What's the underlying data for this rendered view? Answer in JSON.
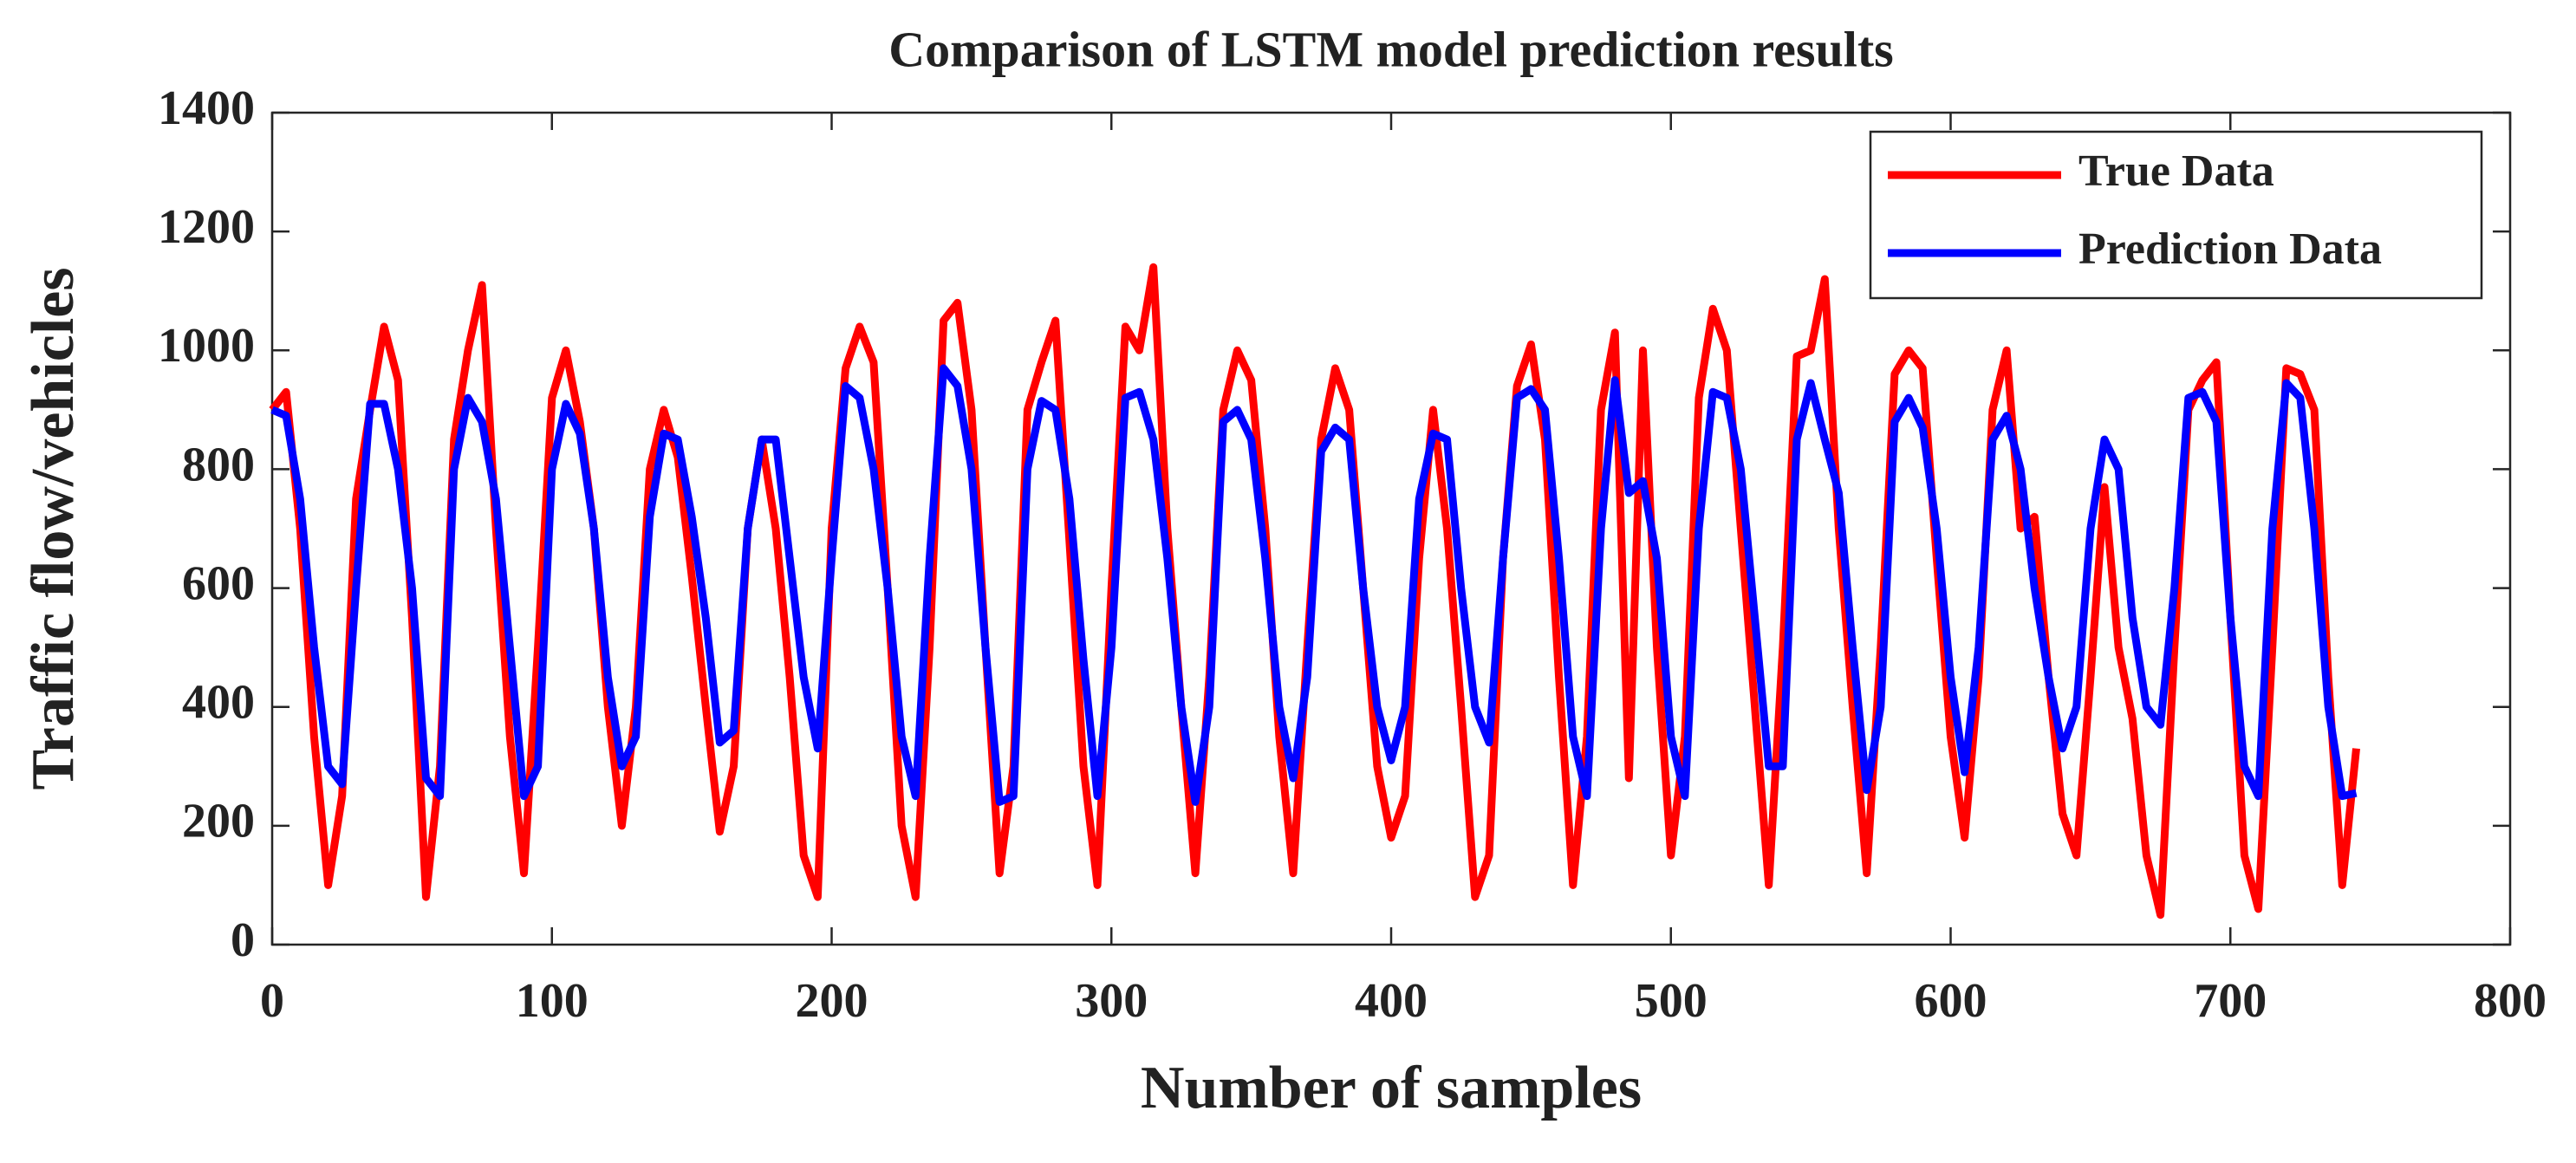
{
  "chart_data": {
    "type": "line",
    "title": "Comparison of LSTM model prediction results",
    "x_label": "Number of samples",
    "y_label": "Traffic flow/vehicles",
    "x": [
      0,
      5,
      10,
      15,
      20,
      25,
      30,
      35,
      40,
      45,
      50,
      55,
      60,
      65,
      70,
      75,
      80,
      85,
      90,
      95,
      100,
      105,
      110,
      115,
      120,
      125,
      130,
      135,
      140,
      145,
      150,
      155,
      160,
      165,
      170,
      175,
      180,
      185,
      190,
      195,
      200,
      205,
      210,
      215,
      220,
      225,
      230,
      235,
      240,
      245,
      250,
      255,
      260,
      265,
      270,
      275,
      280,
      285,
      290,
      295,
      300,
      305,
      310,
      315,
      320,
      325,
      330,
      335,
      340,
      345,
      350,
      355,
      360,
      365,
      370,
      375,
      380,
      385,
      390,
      395,
      400,
      405,
      410,
      415,
      420,
      425,
      430,
      435,
      440,
      445,
      450,
      455,
      460,
      465,
      470,
      475,
      480,
      485,
      490,
      495,
      500,
      505,
      510,
      515,
      520,
      525,
      530,
      535,
      540,
      545,
      550,
      555,
      560,
      565,
      570,
      575,
      580,
      585,
      590,
      595,
      600,
      605,
      610,
      615,
      620,
      625,
      630,
      635,
      640,
      645,
      650,
      655,
      660,
      665,
      670,
      675,
      680,
      685,
      690,
      695,
      700,
      705,
      710,
      715,
      720,
      725,
      730,
      735,
      740,
      745
    ],
    "series": [
      {
        "name": "True Data",
        "color": "#ff0000",
        "values": [
          900,
          930,
          700,
          350,
          100,
          250,
          750,
          900,
          1040,
          950,
          550,
          80,
          300,
          850,
          1000,
          1110,
          700,
          350,
          120,
          500,
          920,
          1000,
          880,
          700,
          400,
          200,
          400,
          800,
          900,
          820,
          620,
          400,
          190,
          300,
          700,
          850,
          700,
          450,
          150,
          80,
          700,
          970,
          1040,
          980,
          600,
          200,
          80,
          500,
          1050,
          1080,
          900,
          500,
          120,
          300,
          900,
          980,
          1050,
          680,
          300,
          100,
          600,
          1040,
          1000,
          1140,
          700,
          400,
          120,
          450,
          900,
          1000,
          950,
          700,
          350,
          120,
          500,
          850,
          970,
          900,
          600,
          300,
          180,
          250,
          650,
          900,
          700,
          400,
          80,
          150,
          650,
          940,
          1010,
          850,
          450,
          100,
          350,
          900,
          1030,
          280,
          1000,
          500,
          150,
          350,
          920,
          1070,
          1000,
          700,
          400,
          100,
          500,
          990,
          1000,
          1120,
          700,
          400,
          120,
          500,
          960,
          1000,
          970,
          650,
          350,
          180,
          450,
          900,
          1000,
          700,
          720,
          450,
          220,
          150,
          450,
          770,
          500,
          380,
          150,
          50,
          500,
          900,
          950,
          980,
          550,
          150,
          60,
          500,
          970,
          960,
          900,
          450,
          100,
          330
        ]
      },
      {
        "name": "Prediction Data",
        "color": "#0000ff",
        "values": [
          900,
          890,
          750,
          500,
          300,
          270,
          600,
          910,
          910,
          800,
          600,
          280,
          250,
          800,
          920,
          880,
          750,
          500,
          250,
          300,
          800,
          910,
          860,
          700,
          450,
          300,
          350,
          720,
          860,
          850,
          720,
          550,
          340,
          360,
          700,
          850,
          850,
          650,
          450,
          330,
          650,
          940,
          920,
          800,
          600,
          350,
          250,
          650,
          970,
          940,
          800,
          500,
          240,
          250,
          800,
          915,
          900,
          750,
          480,
          250,
          500,
          920,
          930,
          850,
          650,
          400,
          240,
          400,
          880,
          900,
          850,
          650,
          400,
          280,
          450,
          830,
          870,
          850,
          600,
          400,
          310,
          400,
          750,
          860,
          850,
          600,
          400,
          340,
          650,
          920,
          935,
          900,
          650,
          350,
          250,
          700,
          950,
          760,
          780,
          650,
          350,
          250,
          700,
          930,
          920,
          800,
          550,
          300,
          300,
          850,
          945,
          850,
          760,
          500,
          260,
          400,
          880,
          920,
          870,
          700,
          450,
          290,
          500,
          850,
          890,
          800,
          600,
          450,
          330,
          400,
          700,
          850,
          800,
          550,
          400,
          370,
          600,
          920,
          930,
          880,
          550,
          300,
          250,
          700,
          945,
          920,
          700,
          400,
          250,
          255
        ]
      }
    ],
    "xlim": [
      0,
      800
    ],
    "xticks": [
      0,
      100,
      200,
      300,
      400,
      500,
      600,
      700,
      800
    ],
    "ylim": [
      0,
      1400
    ],
    "yticks": [
      0,
      200,
      400,
      600,
      800,
      1000,
      1200,
      1400
    ],
    "legend": "upper right"
  }
}
